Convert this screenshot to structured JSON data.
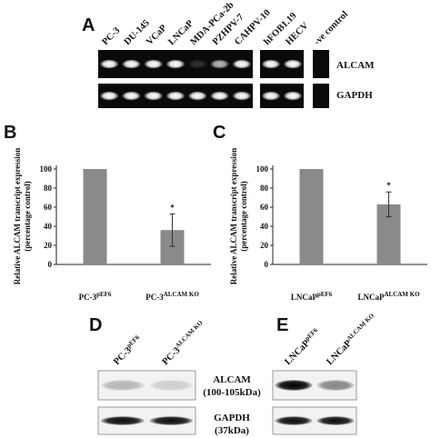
{
  "panels": {
    "A": {
      "label": "A",
      "lanes": [
        "PC-3",
        "DU-145",
        "VCaP",
        "LNCaP",
        "MDA-PCa-2b",
        "PZHPV-7",
        "CAHPV-10",
        "hFOB1.19",
        "HECV",
        "-ve control"
      ],
      "rows": [
        "ALCAM",
        "GAPDH"
      ]
    },
    "D": {
      "label": "D",
      "lanes": [
        {
          "base": "PC-3",
          "sup": "pEF6"
        },
        {
          "base": "PC-3",
          "sup": "ALCAM KO"
        }
      ],
      "rows": [
        {
          "name": "ALCAM",
          "size": "(100-105kDa)"
        },
        {
          "name": "GAPDH",
          "size": "(37kDa)"
        }
      ]
    },
    "E": {
      "label": "E",
      "lanes": [
        {
          "base": "LNCaP",
          "sup": "pEF6"
        },
        {
          "base": "LNCaP",
          "sup": "ALCAM KO"
        }
      ]
    }
  },
  "chart_data": [
    {
      "type": "bar",
      "panel": "B",
      "y_label": [
        "Relative ALCAM transcript expression",
        "(percentage control)"
      ],
      "categories": [
        "PC-3",
        "PC-3"
      ],
      "category_superscripts": [
        "pEF6",
        "ALCAM KO"
      ],
      "values": [
        100,
        36
      ],
      "errors": [
        null,
        17
      ],
      "significance": [
        null,
        "*"
      ],
      "color": "#8a8a8a",
      "ylim": [
        0,
        100
      ],
      "yticks": [
        0,
        20,
        40,
        60,
        80,
        100
      ]
    },
    {
      "type": "bar",
      "panel": "C",
      "y_label": [
        "Relative ALCAM transcript expression",
        "(percentage control)"
      ],
      "categories": [
        "LNCaP",
        "LNCaP"
      ],
      "category_superscripts": [
        "pEF6",
        "ALCAM KO"
      ],
      "values": [
        100,
        63
      ],
      "errors": [
        null,
        13
      ],
      "significance": [
        null,
        "*"
      ],
      "color": "#8a8a8a",
      "ylim": [
        0,
        100
      ],
      "yticks": [
        0,
        20,
        40,
        60,
        80,
        100
      ]
    }
  ]
}
